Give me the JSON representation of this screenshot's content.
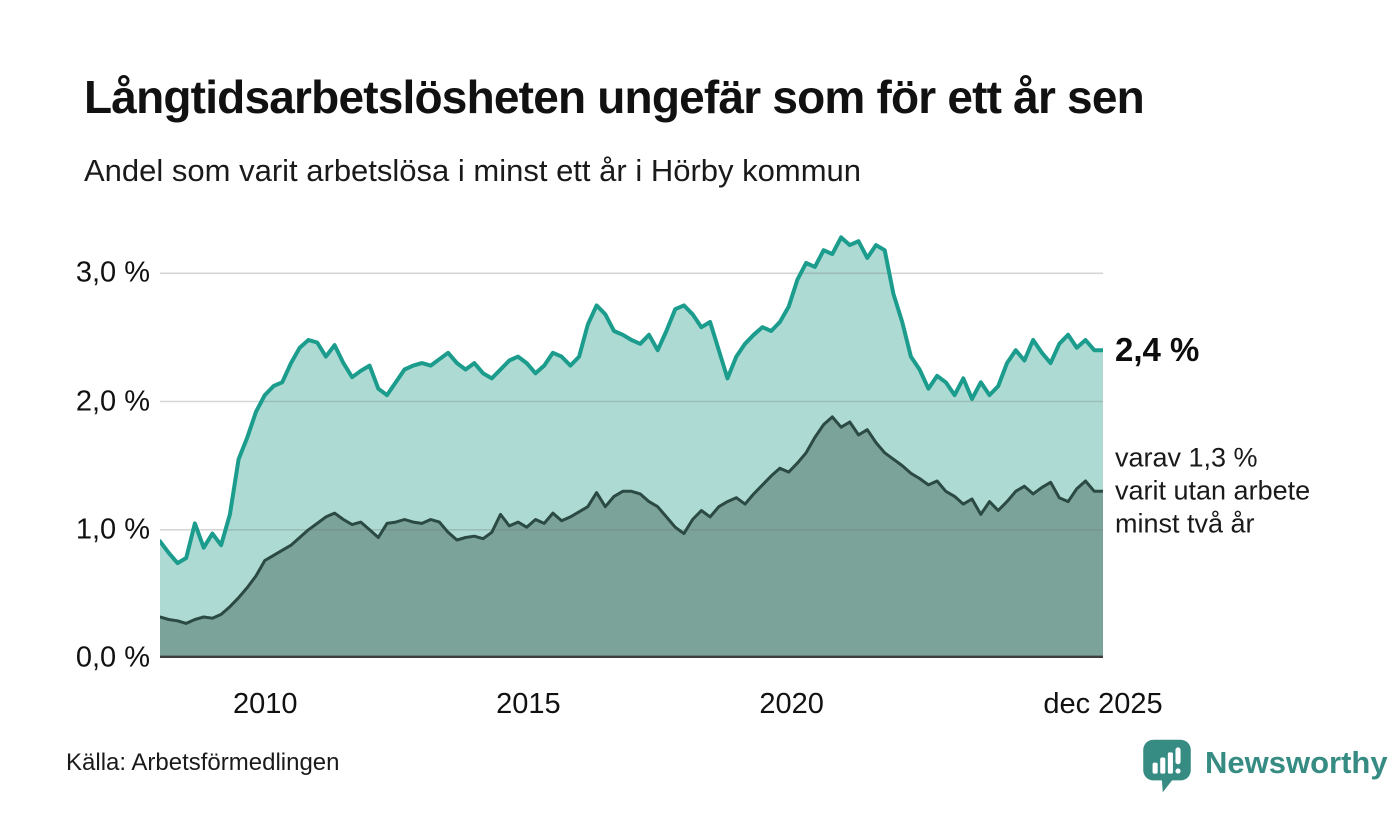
{
  "header": {
    "title": "Långtidsarbetslösheten ungefär som för ett år sen",
    "subtitle": "Andel som varit arbetslösa i minst ett år i Hörby kommun"
  },
  "footer": {
    "source": "Källa: Arbetsförmedlingen",
    "brand": "Newsworthy"
  },
  "colors": {
    "series1_line": "#1b9c8d",
    "series1_fill": "#addbd3",
    "series2_line": "#2b4a43",
    "series2_fill": "#7ba39a",
    "grid": "rgba(120,120,120,0.30)",
    "axis": "#3d3d3d",
    "brand_teal": "#368b82"
  },
  "chart_data": {
    "type": "area",
    "title": "Andel som varit arbetslösa i minst ett år i Hörby kommun",
    "x_start": 2008.0,
    "x_end": 2025.917,
    "ylim": [
      0,
      3.4
    ],
    "grid_values": [
      1.0,
      2.0,
      3.0
    ],
    "y_ticks": [
      {
        "value": 0.0,
        "label": "0,0 %"
      },
      {
        "value": 1.0,
        "label": "1,0 %"
      },
      {
        "value": 2.0,
        "label": "2,0 %"
      },
      {
        "value": 3.0,
        "label": "3,0 %"
      }
    ],
    "x_ticks": [
      {
        "value": 2010.0,
        "label": "2010"
      },
      {
        "value": 2015.0,
        "label": "2015"
      },
      {
        "value": 2020.0,
        "label": "2020"
      },
      {
        "value": 2025.917,
        "label": "dec 2025"
      }
    ],
    "series": [
      {
        "name": "Andel arbetslösa minst ett år",
        "line_color": "#1b9c8d",
        "fill_color": "#addbd3",
        "line_width": 4,
        "end_value": 2.4,
        "end_label_lines": [
          "2,4 %"
        ],
        "values": [
          0.91,
          0.82,
          0.74,
          0.78,
          1.05,
          0.86,
          0.97,
          0.88,
          1.12,
          1.55,
          1.72,
          1.92,
          2.05,
          2.12,
          2.15,
          2.3,
          2.42,
          2.48,
          2.46,
          2.35,
          2.44,
          2.3,
          2.19,
          2.24,
          2.28,
          2.1,
          2.05,
          2.15,
          2.25,
          2.28,
          2.3,
          2.28,
          2.33,
          2.38,
          2.3,
          2.25,
          2.3,
          2.22,
          2.18,
          2.25,
          2.32,
          2.35,
          2.3,
          2.22,
          2.28,
          2.38,
          2.35,
          2.28,
          2.35,
          2.6,
          2.75,
          2.68,
          2.55,
          2.52,
          2.48,
          2.45,
          2.52,
          2.4,
          2.55,
          2.72,
          2.75,
          2.68,
          2.58,
          2.62,
          2.4,
          2.18,
          2.35,
          2.45,
          2.52,
          2.58,
          2.55,
          2.62,
          2.74,
          2.95,
          3.08,
          3.05,
          3.18,
          3.15,
          3.28,
          3.22,
          3.25,
          3.12,
          3.22,
          3.18,
          2.84,
          2.62,
          2.35,
          2.25,
          2.1,
          2.2,
          2.15,
          2.05,
          2.18,
          2.02,
          2.15,
          2.05,
          2.12,
          2.3,
          2.4,
          2.32,
          2.48,
          2.38,
          2.3,
          2.45,
          2.52,
          2.42,
          2.48,
          2.4,
          2.4
        ]
      },
      {
        "name": "varav arbetslösa minst två år",
        "line_color": "#2b4a43",
        "fill_color": "#7ba39a",
        "line_width": 3,
        "end_value": 1.3,
        "end_label_lines": [
          "varav 1,3 %",
          "varit utan arbete",
          "minst två år"
        ],
        "values": [
          0.32,
          0.3,
          0.29,
          0.27,
          0.3,
          0.32,
          0.31,
          0.34,
          0.4,
          0.47,
          0.55,
          0.64,
          0.76,
          0.8,
          0.84,
          0.88,
          0.94,
          1.0,
          1.05,
          1.1,
          1.13,
          1.08,
          1.04,
          1.06,
          1.0,
          0.94,
          1.05,
          1.06,
          1.08,
          1.06,
          1.05,
          1.08,
          1.06,
          0.98,
          0.92,
          0.94,
          0.95,
          0.93,
          0.98,
          1.12,
          1.03,
          1.06,
          1.02,
          1.08,
          1.05,
          1.13,
          1.07,
          1.1,
          1.14,
          1.18,
          1.29,
          1.18,
          1.26,
          1.3,
          1.3,
          1.28,
          1.22,
          1.18,
          1.1,
          1.02,
          0.97,
          1.08,
          1.15,
          1.1,
          1.18,
          1.22,
          1.25,
          1.2,
          1.28,
          1.35,
          1.42,
          1.48,
          1.45,
          1.52,
          1.6,
          1.72,
          1.82,
          1.88,
          1.8,
          1.84,
          1.74,
          1.78,
          1.68,
          1.6,
          1.55,
          1.5,
          1.44,
          1.4,
          1.35,
          1.38,
          1.3,
          1.26,
          1.2,
          1.24,
          1.12,
          1.22,
          1.15,
          1.22,
          1.3,
          1.34,
          1.28,
          1.33,
          1.37,
          1.25,
          1.22,
          1.32,
          1.38,
          1.3,
          1.3
        ]
      }
    ],
    "grid_on": true,
    "legend_position": "right-annotations"
  }
}
